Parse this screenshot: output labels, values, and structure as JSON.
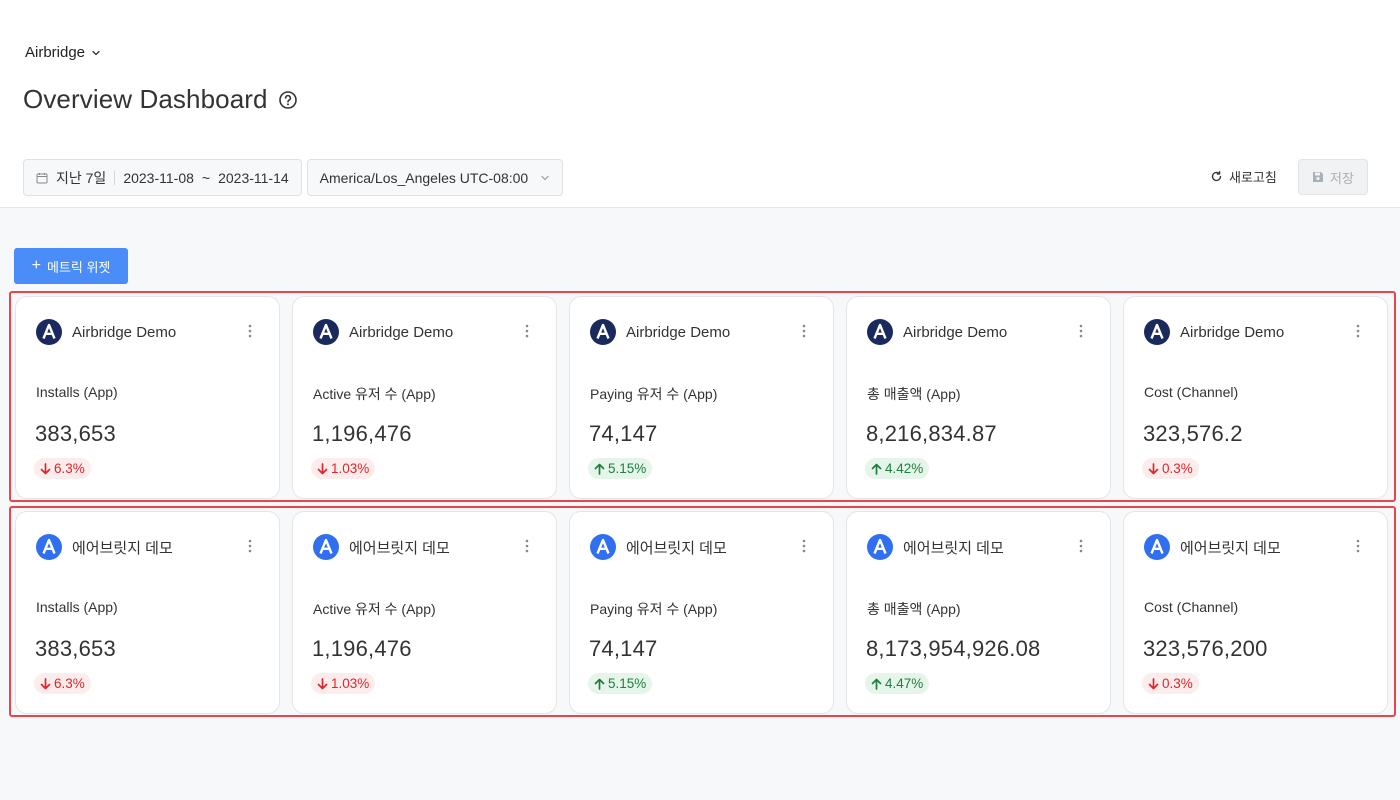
{
  "header": {
    "app_switcher_label": "Airbridge",
    "page_title": "Overview Dashboard",
    "date_preset": "지난 7일",
    "date_start": "2023-11-08",
    "date_tilde": "~",
    "date_end": "2023-11-14",
    "timezone": "America/Los_Angeles UTC-08:00",
    "refresh_label": "새로고침",
    "save_label": "저장"
  },
  "add_widget_label": "메트릭 위젯",
  "colors": {
    "accent": "#4a8df8",
    "highlight_frame": "#e8464b",
    "down": "#e0262c",
    "up": "#1e7d3f"
  },
  "rows": [
    {
      "cards": [
        {
          "app_name": "Airbridge Demo",
          "logo": "airbridge-dark-logo",
          "metric": "Installs (App)",
          "value": "383,653",
          "change": "6.3%",
          "direction": "down"
        },
        {
          "app_name": "Airbridge Demo",
          "logo": "airbridge-dark-logo",
          "metric": "Active 유저 수 (App)",
          "value": "1,196,476",
          "change": "1.03%",
          "direction": "down"
        },
        {
          "app_name": "Airbridge Demo",
          "logo": "airbridge-dark-logo",
          "metric": "Paying 유저 수 (App)",
          "value": "74,147",
          "change": "5.15%",
          "direction": "up"
        },
        {
          "app_name": "Airbridge Demo",
          "logo": "airbridge-dark-logo",
          "metric": "총 매출액 (App)",
          "value": "8,216,834.87",
          "change": "4.42%",
          "direction": "up"
        },
        {
          "app_name": "Airbridge Demo",
          "logo": "airbridge-dark-logo",
          "metric": "Cost (Channel)",
          "value": "323,576.2",
          "change": "0.3%",
          "direction": "down"
        }
      ]
    },
    {
      "cards": [
        {
          "app_name": "에어브릿지 데모",
          "logo": "airbridge-blue-logo",
          "metric": "Installs (App)",
          "value": "383,653",
          "change": "6.3%",
          "direction": "down"
        },
        {
          "app_name": "에어브릿지 데모",
          "logo": "airbridge-blue-logo",
          "metric": "Active 유저 수 (App)",
          "value": "1,196,476",
          "change": "1.03%",
          "direction": "down"
        },
        {
          "app_name": "에어브릿지 데모",
          "logo": "airbridge-blue-logo",
          "metric": "Paying 유저 수 (App)",
          "value": "74,147",
          "change": "5.15%",
          "direction": "up"
        },
        {
          "app_name": "에어브릿지 데모",
          "logo": "airbridge-blue-logo",
          "metric": "총 매출액 (App)",
          "value": "8,173,954,926.08",
          "change": "4.47%",
          "direction": "up"
        },
        {
          "app_name": "에어브릿지 데모",
          "logo": "airbridge-blue-logo",
          "metric": "Cost (Channel)",
          "value": "323,576,200",
          "change": "0.3%",
          "direction": "down"
        }
      ]
    }
  ]
}
